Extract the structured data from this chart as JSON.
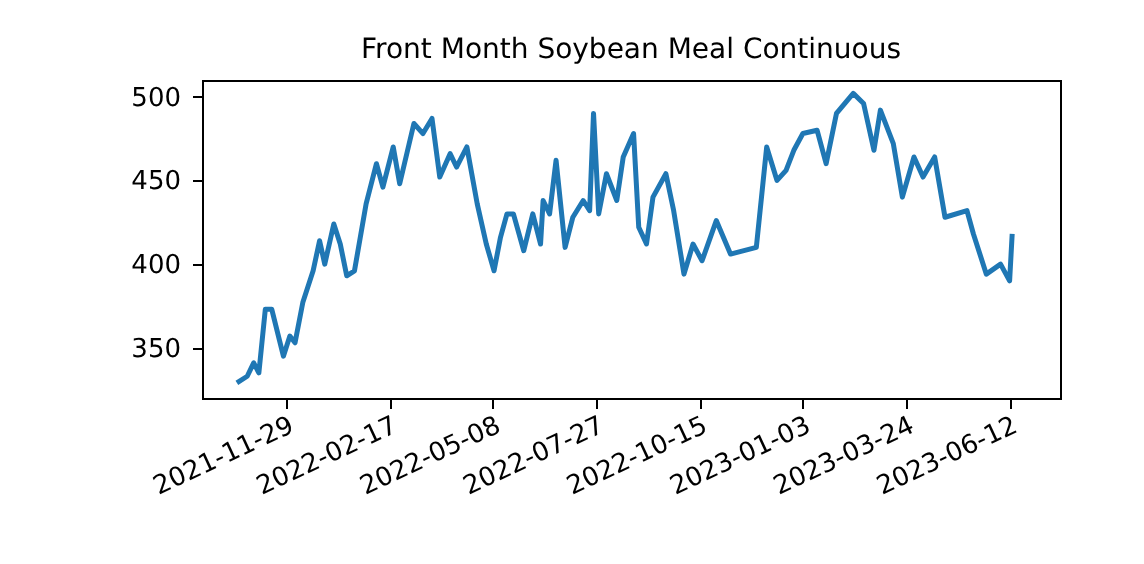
{
  "chart_data": {
    "type": "line",
    "title": "Front Month Soybean Meal Continuous",
    "x": [
      "2021-10-22",
      "2021-10-30",
      "2021-11-04",
      "2021-11-08",
      "2021-11-13",
      "2021-11-18",
      "2021-11-27",
      "2021-12-02",
      "2021-12-06",
      "2021-12-12",
      "2021-12-20",
      "2021-12-25",
      "2021-12-29",
      "2022-01-05",
      "2022-01-10",
      "2022-01-15",
      "2022-01-21",
      "2022-01-30",
      "2022-02-07",
      "2022-02-12",
      "2022-02-20",
      "2022-02-25",
      "2022-03-08",
      "2022-03-15",
      "2022-03-22",
      "2022-03-28",
      "2022-04-05",
      "2022-04-10",
      "2022-04-18",
      "2022-04-26",
      "2022-05-03",
      "2022-05-09",
      "2022-05-14",
      "2022-05-19",
      "2022-05-24",
      "2022-06-01",
      "2022-06-08",
      "2022-06-14",
      "2022-06-16",
      "2022-06-21",
      "2022-06-26",
      "2022-07-03",
      "2022-07-09",
      "2022-07-17",
      "2022-07-22",
      "2022-07-25",
      "2022-07-29",
      "2022-08-04",
      "2022-08-12",
      "2022-08-17",
      "2022-08-25",
      "2022-08-29",
      "2022-09-04",
      "2022-09-09",
      "2022-09-19",
      "2022-09-25",
      "2022-10-03",
      "2022-10-10",
      "2022-10-17",
      "2022-10-28",
      "2022-11-08",
      "2022-11-28",
      "2022-12-06",
      "2022-12-14",
      "2022-12-21",
      "2022-12-27",
      "2023-01-03",
      "2023-01-14",
      "2023-01-21",
      "2023-01-29",
      "2023-02-11",
      "2023-02-19",
      "2023-02-27",
      "2023-03-04",
      "2023-03-14",
      "2023-03-21",
      "2023-03-30",
      "2023-04-06",
      "2023-04-15",
      "2023-04-23",
      "2023-05-10",
      "2023-05-15",
      "2023-05-25",
      "2023-06-05",
      "2023-06-12",
      "2023-06-14"
    ],
    "series": [
      {
        "color": "#1f77b4",
        "values": [
          329,
          333,
          341,
          335,
          373,
          373,
          345,
          357,
          353,
          377,
          396,
          414,
          400,
          424,
          412,
          393,
          396,
          436,
          460,
          446,
          470,
          448,
          484,
          478,
          487,
          452,
          466,
          458,
          470,
          436,
          412,
          396,
          416,
          430,
          430,
          408,
          430,
          412,
          438,
          430,
          462,
          410,
          428,
          438,
          432,
          490,
          430,
          454,
          438,
          464,
          478,
          422,
          412,
          440,
          454,
          432,
          394,
          412,
          402,
          426,
          406,
          410,
          470,
          450,
          456,
          468,
          478,
          480,
          460,
          490,
          502,
          496,
          468,
          492,
          472,
          440,
          464,
          452,
          464,
          428,
          432,
          418,
          394,
          400,
          390,
          418
        ]
      }
    ],
    "xlim": [
      "2021-09-25",
      "2023-07-21"
    ],
    "xticks": [
      "2021-11-29",
      "2022-02-17",
      "2022-05-08",
      "2022-07-27",
      "2022-10-15",
      "2023-01-03",
      "2023-03-24",
      "2023-06-12"
    ],
    "ylim": [
      320,
      510
    ],
    "yticks": [
      350,
      400,
      450,
      500
    ],
    "grid": false,
    "legend": false,
    "line_style": "solid",
    "marker": "none"
  }
}
